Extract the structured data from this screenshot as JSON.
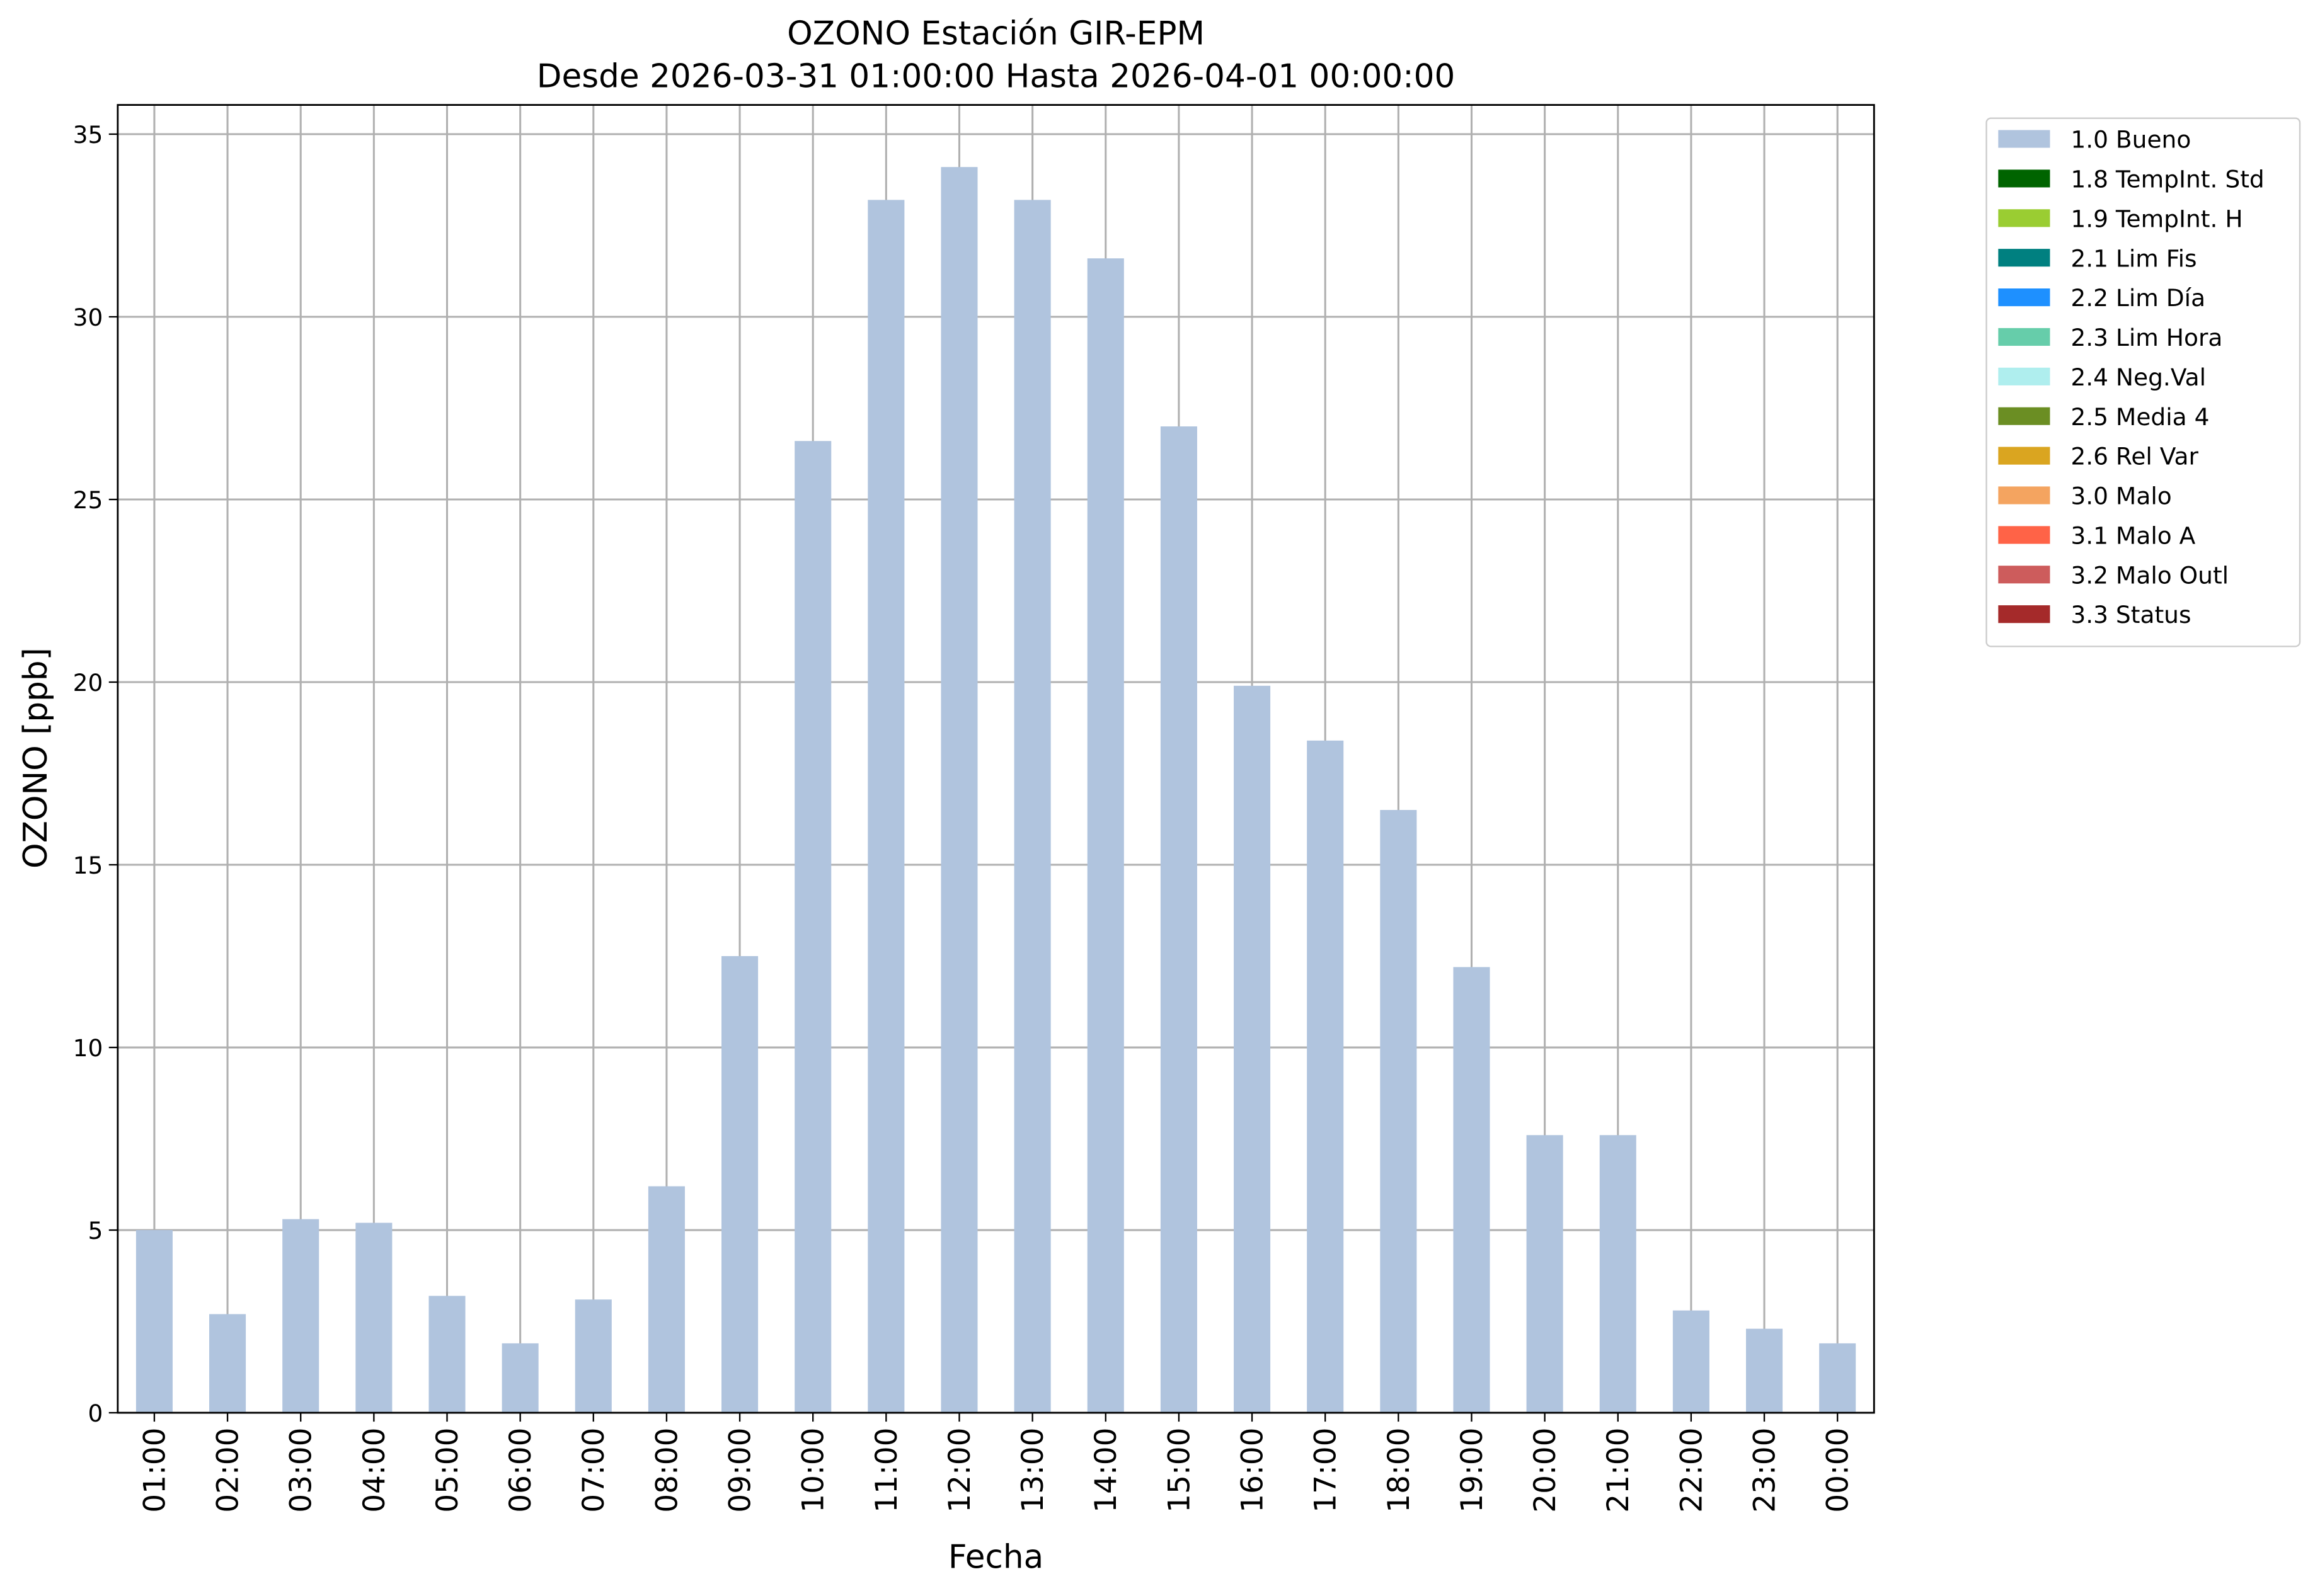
{
  "chart_data": {
    "type": "bar",
    "title": "OZONO Estación GIR-EPM",
    "subtitle": "Desde 2026-03-31 01:00:00 Hasta 2026-04-01 00:00:00",
    "x_label": "Fecha",
    "y_label": "OZONO [ppb]",
    "categories": [
      "01:00",
      "02:00",
      "03:00",
      "04:00",
      "05:00",
      "06:00",
      "07:00",
      "08:00",
      "09:00",
      "10:00",
      "11:00",
      "12:00",
      "13:00",
      "14:00",
      "15:00",
      "16:00",
      "17:00",
      "18:00",
      "19:00",
      "20:00",
      "21:00",
      "22:00",
      "23:00",
      "00:00"
    ],
    "series": [
      {
        "name": "1.0 Bueno",
        "color": "#b0c4de",
        "values": [
          5.0,
          2.7,
          5.3,
          5.2,
          3.2,
          1.9,
          3.1,
          6.2,
          12.5,
          26.6,
          33.2,
          34.1,
          33.2,
          31.6,
          27.0,
          19.9,
          18.4,
          16.5,
          12.2,
          7.6,
          7.6,
          2.8,
          2.3,
          1.9
        ]
      },
      {
        "name": "1.8 TempInt. Std",
        "color": "#006400",
        "values": [
          null,
          null,
          null,
          null,
          null,
          null,
          null,
          null,
          null,
          null,
          null,
          null,
          null,
          null,
          null,
          null,
          null,
          null,
          null,
          null,
          null,
          null,
          null,
          null
        ]
      },
      {
        "name": "1.9 TempInt. H",
        "color": "#9acd32",
        "values": [
          null,
          null,
          null,
          null,
          null,
          null,
          null,
          null,
          null,
          null,
          null,
          null,
          null,
          null,
          null,
          null,
          null,
          null,
          null,
          null,
          null,
          null,
          null,
          null
        ]
      },
      {
        "name": "2.1 Lim Fis",
        "color": "#008080",
        "values": [
          null,
          null,
          null,
          null,
          null,
          null,
          null,
          null,
          null,
          null,
          null,
          null,
          null,
          null,
          null,
          null,
          null,
          null,
          null,
          null,
          null,
          null,
          null,
          null
        ]
      },
      {
        "name": "2.2 Lim Día",
        "color": "#1e90ff",
        "values": [
          null,
          null,
          null,
          null,
          null,
          null,
          null,
          null,
          null,
          null,
          null,
          null,
          null,
          null,
          null,
          null,
          null,
          null,
          null,
          null,
          null,
          null,
          null,
          null
        ]
      },
      {
        "name": "2.3 Lim Hora",
        "color": "#66cdaa",
        "values": [
          null,
          null,
          null,
          null,
          null,
          null,
          null,
          null,
          null,
          null,
          null,
          null,
          null,
          null,
          null,
          null,
          null,
          null,
          null,
          null,
          null,
          null,
          null,
          null
        ]
      },
      {
        "name": "2.4 Neg.Val",
        "color": "#afeeee",
        "values": [
          null,
          null,
          null,
          null,
          null,
          null,
          null,
          null,
          null,
          null,
          null,
          null,
          null,
          null,
          null,
          null,
          null,
          null,
          null,
          null,
          null,
          null,
          null,
          null
        ]
      },
      {
        "name": "2.5 Media 4",
        "color": "#6b8e23",
        "values": [
          null,
          null,
          null,
          null,
          null,
          null,
          null,
          null,
          null,
          null,
          null,
          null,
          null,
          null,
          null,
          null,
          null,
          null,
          null,
          null,
          null,
          null,
          null,
          null
        ]
      },
      {
        "name": "2.6 Rel Var",
        "color": "#daa520",
        "values": [
          null,
          null,
          null,
          null,
          null,
          null,
          null,
          null,
          null,
          null,
          null,
          null,
          null,
          null,
          null,
          null,
          null,
          null,
          null,
          null,
          null,
          null,
          null,
          null
        ]
      },
      {
        "name": "3.0 Malo",
        "color": "#f4a460",
        "values": [
          null,
          null,
          null,
          null,
          null,
          null,
          null,
          null,
          null,
          null,
          null,
          null,
          null,
          null,
          null,
          null,
          null,
          null,
          null,
          null,
          null,
          null,
          null,
          null
        ]
      },
      {
        "name": "3.1 Malo A",
        "color": "#ff6347",
        "values": [
          null,
          null,
          null,
          null,
          null,
          null,
          null,
          null,
          null,
          null,
          null,
          null,
          null,
          null,
          null,
          null,
          null,
          null,
          null,
          null,
          null,
          null,
          null,
          null
        ]
      },
      {
        "name": "3.2 Malo Outl",
        "color": "#cd5c5c",
        "values": [
          null,
          null,
          null,
          null,
          null,
          null,
          null,
          null,
          null,
          null,
          null,
          null,
          null,
          null,
          null,
          null,
          null,
          null,
          null,
          null,
          null,
          null,
          null,
          null
        ]
      },
      {
        "name": "3.3 Status",
        "color": "#a52a2a",
        "values": [
          null,
          null,
          null,
          null,
          null,
          null,
          null,
          null,
          null,
          null,
          null,
          null,
          null,
          null,
          null,
          null,
          null,
          null,
          null,
          null,
          null,
          null,
          null,
          null
        ]
      }
    ],
    "ylim": [
      0,
      35.8
    ],
    "yticks": [
      0,
      5,
      10,
      15,
      20,
      25,
      30,
      35
    ],
    "grid": true,
    "legend": "outside-upper-right"
  }
}
